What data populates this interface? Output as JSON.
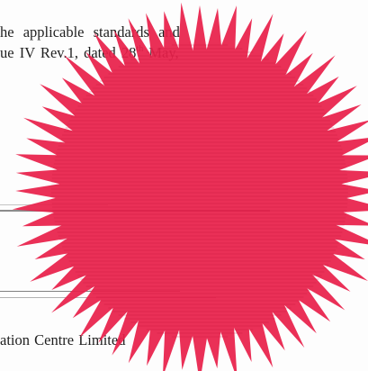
{
  "document": {
    "lines": {
      "line1": "he applicable standards and",
      "line2_prefix": "ue IV Rev.1, dated 28",
      "line2_sup": "th",
      "line2_suffix": " May,",
      "line3": "ation Centre Limited"
    }
  },
  "seal": {
    "type": "red-embossed-seal",
    "color": "#e8204a"
  }
}
